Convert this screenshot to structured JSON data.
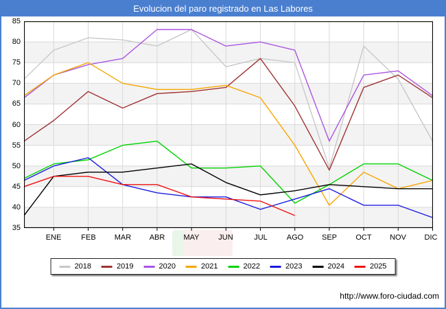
{
  "window": {
    "title": "Evolucion del paro registrado en Las Labores"
  },
  "footer": {
    "url": "http://www.foro-ciudad.com"
  },
  "theme": {
    "accent": "#4a7fd0",
    "band": "#f3f3f3",
    "grid": "#d9d9d9",
    "frame": "#000000"
  },
  "chart_data": {
    "type": "line",
    "title": "Evolucion del paro registrado en Las Labores",
    "xlabel": "",
    "ylabel": "",
    "categories": [
      "ENE",
      "FEB",
      "MAR",
      "ABR",
      "MAY",
      "JUN",
      "JUL",
      "AGO",
      "SEP",
      "OCT",
      "NOV",
      "DIC"
    ],
    "note": "first value of each series is the carry-in point drawn on the left axis before ENE (previous December)",
    "ylim": [
      35,
      85
    ],
    "y_ticks": [
      85,
      80,
      75,
      70,
      65,
      60,
      55,
      50,
      45,
      40,
      35
    ],
    "grid": true,
    "legend_position": "bottom",
    "series": [
      {
        "name": "2018",
        "color": "#c8c8c8",
        "values": [
          71,
          78,
          81,
          80.5,
          79,
          83,
          74,
          76,
          75,
          49.5,
          79,
          71,
          56
        ]
      },
      {
        "name": "2019",
        "color": "#a03232",
        "values": [
          56,
          61,
          68,
          64,
          67.5,
          68,
          69,
          76,
          64.5,
          49,
          69,
          72,
          66.5
        ]
      },
      {
        "name": "2020",
        "color": "#ab55e0",
        "values": [
          66.5,
          72,
          74.5,
          76,
          83,
          83,
          79,
          80,
          78,
          56,
          72,
          73,
          67
        ]
      },
      {
        "name": "2021",
        "color": "#f7a600",
        "values": [
          67,
          72,
          75,
          70,
          68.5,
          68.5,
          69.5,
          66.5,
          55,
          40.5,
          48.5,
          44.5,
          46.5
        ]
      },
      {
        "name": "2022",
        "color": "#00d200",
        "values": [
          47,
          50.5,
          51.5,
          55,
          56,
          49.5,
          49.5,
          50,
          41,
          45.5,
          50.5,
          50.5,
          46.5
        ]
      },
      {
        "name": "2023",
        "color": "#1a1ae0",
        "values": [
          46.5,
          50,
          52,
          45.5,
          43.5,
          42.5,
          42.5,
          39.5,
          42,
          44.5,
          40.5,
          40.5,
          37.5
        ]
      },
      {
        "name": "2024",
        "color": "#000000",
        "values": [
          38,
          47.5,
          48.5,
          48.5,
          49.5,
          50.5,
          46,
          43,
          44,
          45.5,
          45,
          44.5,
          44.5
        ]
      },
      {
        "name": "2025",
        "color": "#ee1111",
        "values": [
          45,
          47.5,
          47.5,
          45.5,
          45.5,
          42.5,
          42,
          41.5,
          38,
          null,
          null,
          null,
          null
        ]
      }
    ]
  }
}
